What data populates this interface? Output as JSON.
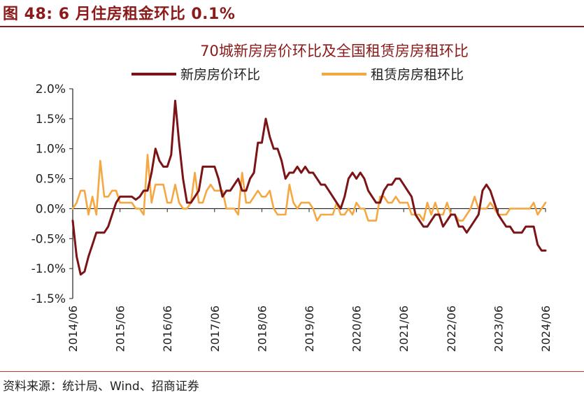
{
  "figure_title": "图 48:  6 月住房租金环比 0.1%",
  "source": "资料来源：统计局、Wind、招商证券",
  "colors": {
    "accent": "#8b1a1a",
    "new_home": "#7b1416",
    "rent": "#f5a742",
    "axis": "#222222"
  },
  "chart_data": {
    "type": "line",
    "title": "70城新房房价环比及全国租赁房房租环比",
    "legend_position": "top",
    "ylim": [
      -1.5,
      2.0
    ],
    "yticks": [
      -1.5,
      -1.0,
      -0.5,
      0.0,
      0.5,
      1.0,
      1.5,
      2.0
    ],
    "ytick_labels": [
      "-1.5%",
      "-1.0%",
      "-0.5%",
      "0.0%",
      "0.5%",
      "1.0%",
      "1.5%",
      "2.0%"
    ],
    "xlim": [
      "2014-06",
      "2024-06"
    ],
    "xtick_labels": [
      "2014/06",
      "2015/06",
      "2016/06",
      "2017/06",
      "2018/06",
      "2019/06",
      "2020/06",
      "2021/06",
      "2022/06",
      "2023/06",
      "2024/06"
    ],
    "grid": false,
    "series": [
      {
        "name": "新房房价环比",
        "points": [
          [
            "2014-06",
            -0.2
          ],
          [
            "2014-07",
            -0.8
          ],
          [
            "2014-08",
            -1.1
          ],
          [
            "2014-09",
            -1.05
          ],
          [
            "2014-10",
            -0.8
          ],
          [
            "2014-11",
            -0.6
          ],
          [
            "2014-12",
            -0.4
          ],
          [
            "2015-01",
            -0.4
          ],
          [
            "2015-02",
            -0.4
          ],
          [
            "2015-03",
            -0.3
          ],
          [
            "2015-04",
            -0.1
          ],
          [
            "2015-05",
            0.1
          ],
          [
            "2015-06",
            0.2
          ],
          [
            "2015-07",
            0.2
          ],
          [
            "2015-08",
            0.2
          ],
          [
            "2015-09",
            0.2
          ],
          [
            "2015-10",
            0.15
          ],
          [
            "2015-11",
            0.2
          ],
          [
            "2015-12",
            0.3
          ],
          [
            "2016-01",
            0.3
          ],
          [
            "2016-02",
            0.6
          ],
          [
            "2016-03",
            1.0
          ],
          [
            "2016-04",
            0.8
          ],
          [
            "2016-05",
            0.7
          ],
          [
            "2016-06",
            0.7
          ],
          [
            "2016-07",
            0.9
          ],
          [
            "2016-08",
            1.8
          ],
          [
            "2016-09",
            1.1
          ],
          [
            "2016-10",
            0.5
          ],
          [
            "2016-11",
            0.1
          ],
          [
            "2016-12",
            0.1
          ],
          [
            "2017-01",
            0.2
          ],
          [
            "2017-02",
            0.3
          ],
          [
            "2017-03",
            0.7
          ],
          [
            "2017-04",
            0.7
          ],
          [
            "2017-05",
            0.7
          ],
          [
            "2017-06",
            0.7
          ],
          [
            "2017-07",
            0.5
          ],
          [
            "2017-08",
            0.2
          ],
          [
            "2017-09",
            0.3
          ],
          [
            "2017-10",
            0.3
          ],
          [
            "2017-11",
            0.4
          ],
          [
            "2017-12",
            0.5
          ],
          [
            "2018-01",
            0.3
          ],
          [
            "2018-02",
            0.3
          ],
          [
            "2018-03",
            0.5
          ],
          [
            "2018-04",
            0.6
          ],
          [
            "2018-05",
            1.1
          ],
          [
            "2018-06",
            1.1
          ],
          [
            "2018-07",
            1.5
          ],
          [
            "2018-08",
            1.2
          ],
          [
            "2018-09",
            1.0
          ],
          [
            "2018-10",
            1.0
          ],
          [
            "2018-11",
            0.8
          ],
          [
            "2018-12",
            0.5
          ],
          [
            "2019-01",
            0.6
          ],
          [
            "2019-02",
            0.6
          ],
          [
            "2019-03",
            0.7
          ],
          [
            "2019-04",
            0.6
          ],
          [
            "2019-05",
            0.7
          ],
          [
            "2019-06",
            0.6
          ],
          [
            "2019-07",
            0.6
          ],
          [
            "2019-08",
            0.5
          ],
          [
            "2019-09",
            0.4
          ],
          [
            "2019-10",
            0.4
          ],
          [
            "2019-11",
            0.3
          ],
          [
            "2019-12",
            0.2
          ],
          [
            "2020-01",
            0.1
          ],
          [
            "2020-02",
            0.0
          ],
          [
            "2020-03",
            0.2
          ],
          [
            "2020-04",
            0.5
          ],
          [
            "2020-05",
            0.6
          ],
          [
            "2020-06",
            0.5
          ],
          [
            "2020-07",
            0.6
          ],
          [
            "2020-08",
            0.5
          ],
          [
            "2020-09",
            0.3
          ],
          [
            "2020-10",
            0.2
          ],
          [
            "2020-11",
            0.1
          ],
          [
            "2020-12",
            0.1
          ],
          [
            "2021-01",
            0.3
          ],
          [
            "2021-02",
            0.4
          ],
          [
            "2021-03",
            0.4
          ],
          [
            "2021-04",
            0.5
          ],
          [
            "2021-05",
            0.5
          ],
          [
            "2021-06",
            0.4
          ],
          [
            "2021-07",
            0.3
          ],
          [
            "2021-08",
            0.2
          ],
          [
            "2021-09",
            -0.1
          ],
          [
            "2021-10",
            -0.2
          ],
          [
            "2021-11",
            -0.3
          ],
          [
            "2021-12",
            -0.3
          ],
          [
            "2022-01",
            -0.2
          ],
          [
            "2022-02",
            -0.1
          ],
          [
            "2022-03",
            -0.1
          ],
          [
            "2022-04",
            -0.3
          ],
          [
            "2022-05",
            -0.2
          ],
          [
            "2022-06",
            -0.1
          ],
          [
            "2022-07",
            -0.1
          ],
          [
            "2022-08",
            -0.3
          ],
          [
            "2022-09",
            -0.3
          ],
          [
            "2022-10",
            -0.4
          ],
          [
            "2022-11",
            -0.3
          ],
          [
            "2022-12",
            -0.2
          ],
          [
            "2023-01",
            -0.1
          ],
          [
            "2023-02",
            0.3
          ],
          [
            "2023-03",
            0.4
          ],
          [
            "2023-04",
            0.3
          ],
          [
            "2023-05",
            0.1
          ],
          [
            "2023-06",
            -0.1
          ],
          [
            "2023-07",
            -0.2
          ],
          [
            "2023-08",
            -0.3
          ],
          [
            "2023-09",
            -0.3
          ],
          [
            "2023-10",
            -0.4
          ],
          [
            "2023-11",
            -0.4
          ],
          [
            "2023-12",
            -0.4
          ],
          [
            "2024-01",
            -0.3
          ],
          [
            "2024-02",
            -0.3
          ],
          [
            "2024-03",
            -0.3
          ],
          [
            "2024-04",
            -0.6
          ],
          [
            "2024-05",
            -0.7
          ],
          [
            "2024-06",
            -0.7
          ]
        ]
      },
      {
        "name": "租赁房房租环比",
        "points": [
          [
            "2014-06",
            0.0
          ],
          [
            "2014-07",
            0.1
          ],
          [
            "2014-08",
            0.3
          ],
          [
            "2014-09",
            0.3
          ],
          [
            "2014-10",
            -0.1
          ],
          [
            "2014-11",
            0.2
          ],
          [
            "2014-12",
            -0.1
          ],
          [
            "2015-01",
            0.8
          ],
          [
            "2015-02",
            0.2
          ],
          [
            "2015-03",
            0.2
          ],
          [
            "2015-04",
            0.3
          ],
          [
            "2015-05",
            0.3
          ],
          [
            "2015-06",
            0.1
          ],
          [
            "2015-07",
            0.1
          ],
          [
            "2015-08",
            0.1
          ],
          [
            "2015-09",
            0.1
          ],
          [
            "2015-10",
            0.0
          ],
          [
            "2015-11",
            0.0
          ],
          [
            "2015-12",
            -0.1
          ],
          [
            "2016-01",
            0.9
          ],
          [
            "2016-02",
            0.1
          ],
          [
            "2016-03",
            0.4
          ],
          [
            "2016-04",
            0.4
          ],
          [
            "2016-05",
            0.4
          ],
          [
            "2016-06",
            0.1
          ],
          [
            "2016-07",
            0.1
          ],
          [
            "2016-08",
            0.4
          ],
          [
            "2016-09",
            0.1
          ],
          [
            "2016-10",
            0.0
          ],
          [
            "2016-11",
            0.0
          ],
          [
            "2016-12",
            0.1
          ],
          [
            "2017-01",
            0.6
          ],
          [
            "2017-02",
            0.1
          ],
          [
            "2017-03",
            0.1
          ],
          [
            "2017-04",
            0.3
          ],
          [
            "2017-05",
            0.4
          ],
          [
            "2017-06",
            0.3
          ],
          [
            "2017-07",
            0.3
          ],
          [
            "2017-08",
            0.3
          ],
          [
            "2017-09",
            0.0
          ],
          [
            "2017-10",
            0.0
          ],
          [
            "2017-11",
            0.0
          ],
          [
            "2017-12",
            -0.1
          ],
          [
            "2018-01",
            0.6
          ],
          [
            "2018-02",
            0.1
          ],
          [
            "2018-03",
            0.1
          ],
          [
            "2018-04",
            0.2
          ],
          [
            "2018-05",
            0.3
          ],
          [
            "2018-06",
            0.2
          ],
          [
            "2018-07",
            0.2
          ],
          [
            "2018-08",
            0.3
          ],
          [
            "2018-09",
            0.0
          ],
          [
            "2018-10",
            -0.1
          ],
          [
            "2018-11",
            -0.1
          ],
          [
            "2018-12",
            -0.1
          ],
          [
            "2019-01",
            0.4
          ],
          [
            "2019-02",
            0.1
          ],
          [
            "2019-03",
            0.0
          ],
          [
            "2019-04",
            0.1
          ],
          [
            "2019-05",
            0.1
          ],
          [
            "2019-06",
            0.1
          ],
          [
            "2019-07",
            0.0
          ],
          [
            "2019-08",
            -0.2
          ],
          [
            "2019-09",
            -0.1
          ],
          [
            "2019-10",
            -0.1
          ],
          [
            "2019-11",
            -0.1
          ],
          [
            "2019-12",
            -0.1
          ],
          [
            "2020-01",
            0.1
          ],
          [
            "2020-02",
            -0.1
          ],
          [
            "2020-03",
            -0.1
          ],
          [
            "2020-04",
            0.0
          ],
          [
            "2020-05",
            -0.1
          ],
          [
            "2020-06",
            0.1
          ],
          [
            "2020-07",
            0.0
          ],
          [
            "2020-08",
            0.0
          ],
          [
            "2020-09",
            -0.2
          ],
          [
            "2020-10",
            -0.2
          ],
          [
            "2020-11",
            -0.2
          ],
          [
            "2020-12",
            0.2
          ],
          [
            "2021-01",
            0.2
          ],
          [
            "2021-02",
            0.1
          ],
          [
            "2021-03",
            0.1
          ],
          [
            "2021-04",
            0.2
          ],
          [
            "2021-05",
            0.1
          ],
          [
            "2021-06",
            0.1
          ],
          [
            "2021-07",
            0.1
          ],
          [
            "2021-08",
            -0.1
          ],
          [
            "2021-09",
            -0.1
          ],
          [
            "2021-10",
            -0.1
          ],
          [
            "2021-11",
            -0.2
          ],
          [
            "2021-12",
            0.1
          ],
          [
            "2022-01",
            -0.1
          ],
          [
            "2022-02",
            0.1
          ],
          [
            "2022-03",
            -0.1
          ],
          [
            "2022-04",
            -0.1
          ],
          [
            "2022-05",
            0.1
          ],
          [
            "2022-06",
            -0.1
          ],
          [
            "2022-07",
            -0.1
          ],
          [
            "2022-08",
            -0.2
          ],
          [
            "2022-09",
            -0.2
          ],
          [
            "2022-10",
            -0.1
          ],
          [
            "2022-11",
            0.0
          ],
          [
            "2022-12",
            0.2
          ],
          [
            "2023-01",
            0.0
          ],
          [
            "2023-02",
            0.0
          ],
          [
            "2023-03",
            0.0
          ],
          [
            "2023-04",
            0.1
          ],
          [
            "2023-05",
            0.0
          ],
          [
            "2023-06",
            -0.1
          ],
          [
            "2023-07",
            -0.1
          ],
          [
            "2023-08",
            -0.1
          ],
          [
            "2023-09",
            0.0
          ],
          [
            "2023-10",
            0.0
          ],
          [
            "2023-11",
            0.0
          ],
          [
            "2023-12",
            0.0
          ],
          [
            "2024-01",
            0.0
          ],
          [
            "2024-02",
            0.0
          ],
          [
            "2024-03",
            0.1
          ],
          [
            "2024-04",
            -0.1
          ],
          [
            "2024-05",
            0.0
          ],
          [
            "2024-06",
            0.1
          ]
        ]
      }
    ]
  }
}
